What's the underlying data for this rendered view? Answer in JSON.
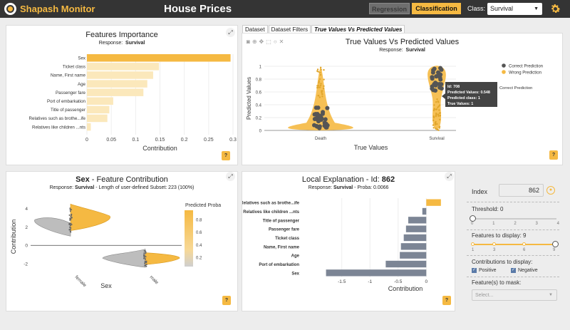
{
  "header": {
    "brand": "Shapash Monitor",
    "title": "House Prices",
    "regression_label": "Regression",
    "classification_label": "Classification",
    "class_label": "Class:",
    "class_value": "Survival",
    "accent_color": "#f5b942",
    "icons": {
      "settings": "gear-icon",
      "dropdown": "chevron-down-icon"
    }
  },
  "features_importance": {
    "title": "Features Importance",
    "response_label": "Response:",
    "response_value": "Survival",
    "xlabel": "Contribution",
    "expand_icon": "expand-icon",
    "help_label": "?"
  },
  "tabs": [
    {
      "label": "Dataset"
    },
    {
      "label": "Dataset Filters"
    },
    {
      "label": "True Values Vs Predicted Values"
    }
  ],
  "true_vs_pred": {
    "title": "True Values Vs Predicted Values",
    "response_label": "Response:",
    "response_value": "Survival",
    "xlabel": "True Values",
    "ylabel": "Predicted Values",
    "legend": {
      "correct": "Correct Prediction",
      "wrong": "Wrong Prediction"
    },
    "tooltip": {
      "line1": "Id: 708",
      "line2": "Predicted Values: 0.548",
      "line3": "Predicted class: 1",
      "line4": "True Values: 1",
      "side": "Correct Prediction"
    },
    "help_label": "?"
  },
  "feature_contribution": {
    "title_bold": "Sex",
    "title_rest": " - Feature Contribution",
    "response_label": "Response:",
    "response_value": "Survival",
    "subset_text": " - Length of user-defined Subset: 223 (100%)",
    "xlabel": "Sex",
    "ylabel": "Contribution",
    "colorbar_title": "Predicted Proba",
    "help_label": "?"
  },
  "local_explanation": {
    "title_prefix": "Local Explanation - Id: ",
    "id": "862",
    "response_label": "Response:",
    "response_value": "Survival",
    "proba_text": " - Proba: 0.0066",
    "xlabel": "Contribution",
    "help_label": "?"
  },
  "side_panel": {
    "index_label": "Index",
    "index_value": "862",
    "threshold_label": "Threshold: 0",
    "threshold_ticks": [
      "0",
      "1",
      "2",
      "3",
      "4"
    ],
    "features_label": "Features to display: 9",
    "features_ticks": [
      "1",
      "3",
      "6",
      "9"
    ],
    "contrib_label": "Contributions to display:",
    "positive_label": "Positive",
    "negative_label": "Negative",
    "mask_label": "Feature(s) to mask:",
    "mask_placeholder": "Select..."
  },
  "chart_data": [
    {
      "type": "bar",
      "orientation": "horizontal",
      "categories": [
        "Sex",
        "Ticket class",
        "Name, First name",
        "Age",
        "Passenger fare",
        "Port of embarkation",
        "Title of passenger",
        "Relatives such as brothe...ife",
        "Relatives like children ...nts"
      ],
      "values": [
        0.295,
        0.148,
        0.136,
        0.124,
        0.116,
        0.054,
        0.046,
        0.042,
        0.008
      ],
      "xticks": [
        "0",
        "0.05",
        "0.1",
        "0.15",
        "0.2",
        "0.25",
        "0.3"
      ],
      "xlim": [
        0,
        0.3
      ],
      "xlabel": "Contribution"
    },
    {
      "type": "violin-scatter",
      "categories": [
        "Death",
        "Survival"
      ],
      "yticks": [
        "0",
        "0.2",
        "0.4",
        "0.6",
        "0.8",
        "1"
      ],
      "ylim": [
        0,
        1
      ],
      "xlabel": "True Values",
      "ylabel": "Predicted Values",
      "series": [
        {
          "name": "Correct Prediction",
          "color": "#555555"
        },
        {
          "name": "Wrong Prediction",
          "color": "#f5b942"
        }
      ]
    },
    {
      "type": "violin-scatter",
      "categories": [
        "female",
        "male"
      ],
      "yticks": [
        "4",
        "2",
        "0",
        "-2"
      ],
      "ylim": [
        -2.7,
        4.6
      ],
      "xlabel": "Sex",
      "ylabel": "Contribution",
      "colorbar_ticks": [
        "0.8",
        "0.6",
        "0.4",
        "0.2"
      ]
    },
    {
      "type": "bar",
      "orientation": "horizontal",
      "categories": [
        "Relatives such as brothe...ife",
        "Relatives like children ...nts",
        "Title of passenger",
        "Passenger fare",
        "Ticket class",
        "Name, First name",
        "Age",
        "Port of embarkation",
        "Sex"
      ],
      "values": [
        0.26,
        -0.07,
        -0.32,
        -0.36,
        -0.4,
        -0.45,
        -0.47,
        -0.72,
        -1.78
      ],
      "xticks": [
        "-1.5",
        "-1",
        "-0.5",
        "0"
      ],
      "xlim": [
        -1.8,
        0.3
      ],
      "xlabel": "Contribution"
    }
  ]
}
